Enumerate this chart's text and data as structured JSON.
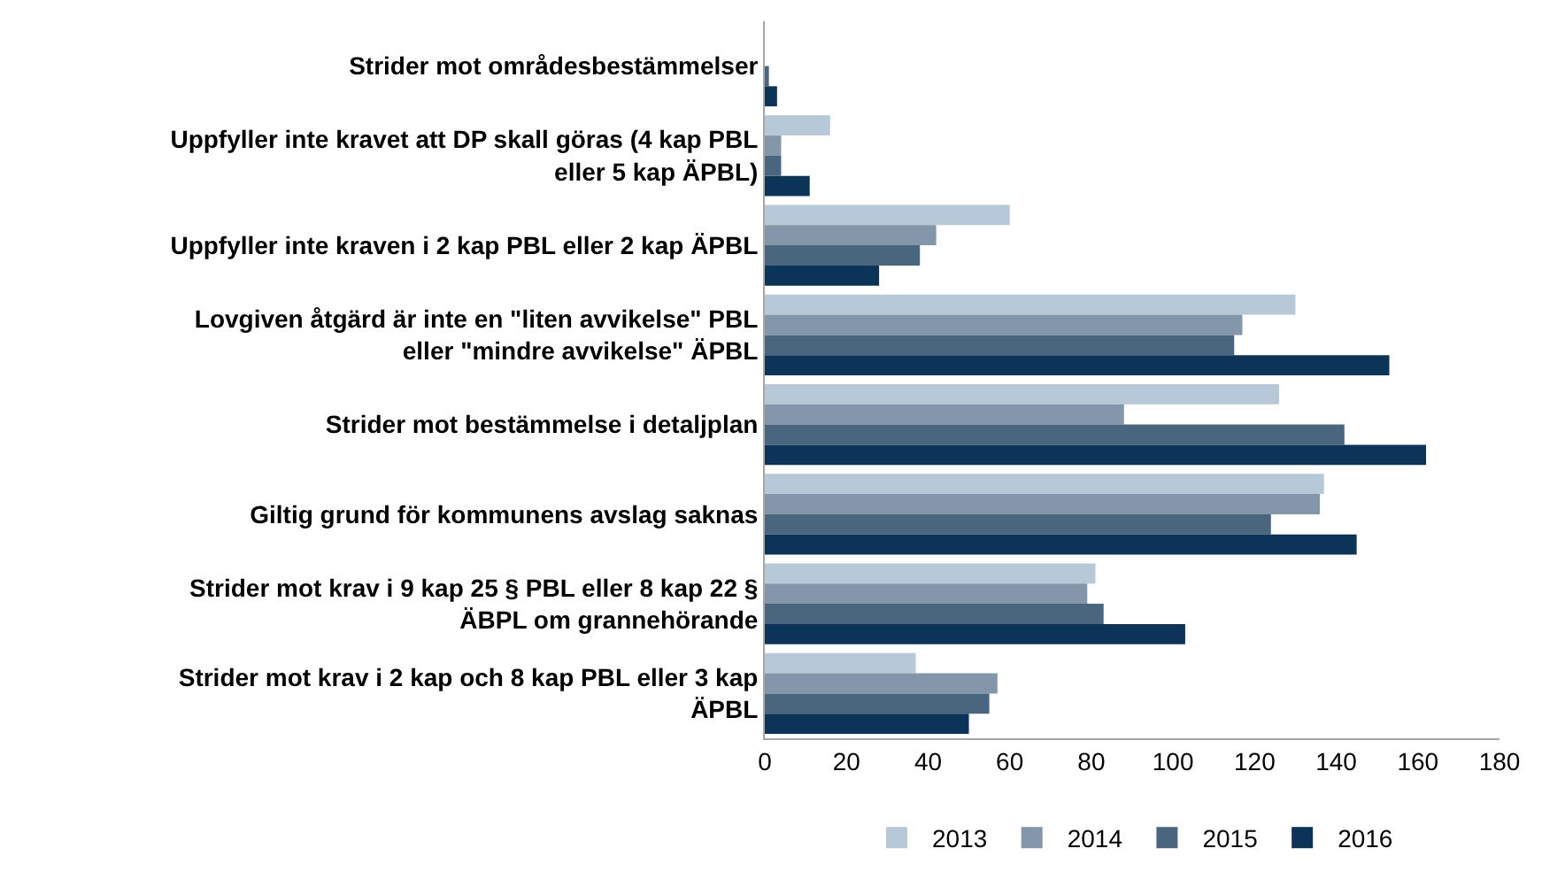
{
  "chart_data": {
    "type": "bar",
    "orientation": "horizontal",
    "categories": [
      "Strider mot områdesbestämmelser",
      "Uppfyller inte kravet att DP skall göras (4 kap PBL\neller 5 kap ÄPBL)",
      "Uppfyller inte kraven i 2 kap PBL eller 2 kap ÄPBL",
      "Lovgiven åtgärd är inte en \"liten avvikelse\" PBL\neller \"mindre avvikelse\" ÄPBL",
      "Strider mot bestämmelse i detaljplan",
      "Giltig grund för kommunens avslag saknas",
      "Strider mot krav i 9 kap 25 § PBL eller 8 kap 22 §\nÄBPL om grannehörande",
      "Strider mot krav i 2 kap och 8 kap PBL eller 3 kap\nÄPBL"
    ],
    "series": [
      {
        "name": "2013",
        "color": "#b7c9d8",
        "values": [
          0,
          16,
          60,
          130,
          126,
          137,
          81,
          37
        ]
      },
      {
        "name": "2014",
        "color": "#8497aa",
        "values": [
          0,
          4,
          42,
          117,
          88,
          136,
          79,
          57
        ]
      },
      {
        "name": "2015",
        "color": "#4a657e",
        "values": [
          1,
          4,
          38,
          115,
          142,
          124,
          83,
          55
        ]
      },
      {
        "name": "2016",
        "color": "#0b3458",
        "values": [
          3,
          11,
          28,
          153,
          162,
          145,
          103,
          50
        ]
      }
    ],
    "xlim": [
      0,
      180
    ],
    "xticks": [
      0,
      20,
      40,
      60,
      80,
      100,
      120,
      140,
      160,
      180
    ],
    "grid": false,
    "legend": "bottom"
  }
}
